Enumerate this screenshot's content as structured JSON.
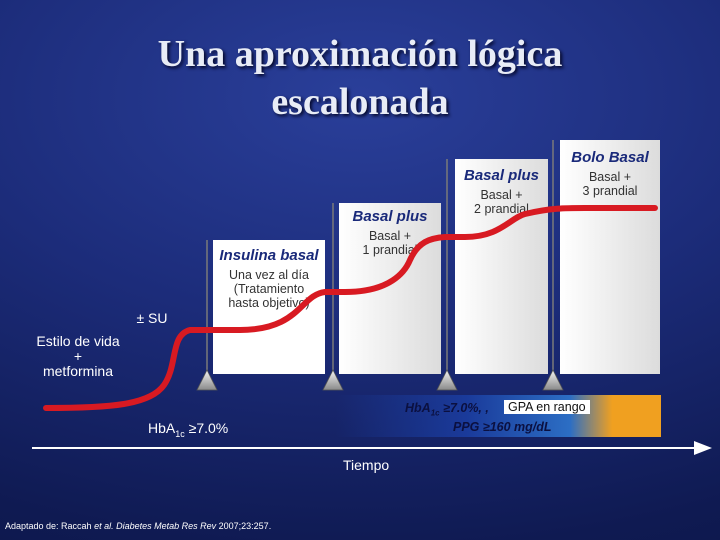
{
  "title_line1": "Una aproximación lógica",
  "title_line2": "escalonada",
  "stages": {
    "lifestyle": {
      "line1": "Estilo de vida",
      "line2": "+",
      "line3": "metformina"
    },
    "su": "± SU",
    "insulina_basal": {
      "title": "Insulina basal",
      "line1": "Una vez al día",
      "line2": "(Tratamiento",
      "line3": "hasta objetivo)"
    },
    "basal_plus_1": {
      "title": "Basal plus",
      "line1": "Basal +",
      "line2": "1 prandial"
    },
    "basal_plus_2": {
      "title": "Basal plus",
      "line1": "Basal +",
      "line2": "2 prandial"
    },
    "bolo_basal": {
      "title": "Bolo Basal",
      "line1": "Basal +",
      "line2": "3 prandial"
    }
  },
  "hba1c_left": {
    "prefix": "HbA",
    "sub": "1c",
    "suffix": " ≥7.0%"
  },
  "band": {
    "l1_prefix": "HbA",
    "l1_sub": "1c",
    "l1_suffix": " ≥7.0%, ,",
    "gpa": "GPA en rango",
    "l2": "PPG ≥160 mg/dL"
  },
  "x_axis_label": "Tiempo",
  "reference": {
    "prefix": "Adaptado de: Raccah ",
    "italic": "et al. Diabetes Metab Res Rev",
    "suffix": " 2007;23:257."
  },
  "colors": {
    "curve": "#c0161e",
    "title_text": "#e8ecf6",
    "header_text": "#1a2a7a",
    "band_orange": "#f0a020"
  }
}
